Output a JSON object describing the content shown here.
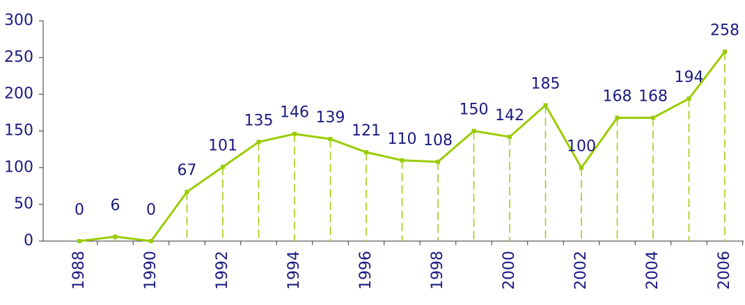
{
  "chart_data": {
    "type": "line",
    "categories": [
      "1988",
      null,
      "1990",
      null,
      "1992",
      null,
      "1994",
      null,
      "1996",
      null,
      "1998",
      null,
      "2000",
      null,
      "2002",
      null,
      "2004",
      null,
      "2006"
    ],
    "values": [
      0,
      6,
      0,
      67,
      101,
      135,
      146,
      139,
      121,
      110,
      108,
      150,
      142,
      185,
      100,
      168,
      168,
      194,
      258
    ],
    "color": "#99cc00",
    "ylim": [
      0,
      300
    ],
    "yticks": [
      0,
      50,
      100,
      150,
      200,
      250,
      300
    ],
    "grid": false
  }
}
